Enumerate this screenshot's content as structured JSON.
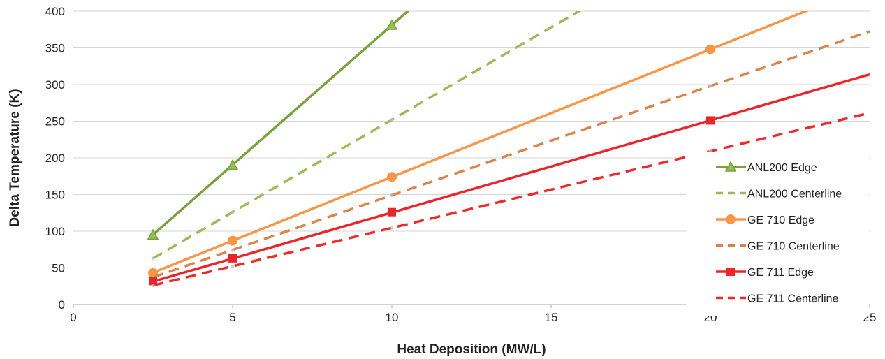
{
  "chart_data": {
    "type": "line",
    "title": "",
    "xlabel": "Heat Deposition (MW/L)",
    "ylabel": "Delta Temperature (K)",
    "xlim": [
      0,
      25
    ],
    "ylim": [
      0,
      400
    ],
    "x_ticks": [
      0,
      5,
      10,
      15,
      20,
      25
    ],
    "y_ticks": [
      0,
      50,
      100,
      150,
      200,
      250,
      300,
      350,
      400
    ],
    "grid": "horizontal",
    "legend_position": "right",
    "series": [
      {
        "name": "ANL200 Edge",
        "color": "#77a33c",
        "dash": "solid",
        "marker": "triangle",
        "x": [
          2.5,
          5,
          10
        ],
        "y": [
          95,
          190,
          381
        ],
        "trend_slope": 38.1
      },
      {
        "name": "ANL200 Centerline",
        "color": "#9bbb59",
        "dash": "dashed",
        "marker": "none",
        "x": [
          2.5,
          5,
          10
        ],
        "y": [
          63,
          126,
          252
        ],
        "trend_slope": 25.2
      },
      {
        "name": "GE 710 Edge",
        "color": "#f79646",
        "dash": "solid",
        "marker": "circle",
        "x": [
          2.5,
          5,
          10,
          20
        ],
        "y": [
          43,
          87,
          174,
          348
        ],
        "trend_slope": 17.4
      },
      {
        "name": "GE 710 Centerline",
        "color": "#d9844a",
        "dash": "dashed",
        "marker": "none",
        "x": [
          2.5,
          5,
          10,
          20
        ],
        "y": [
          37,
          74,
          149,
          298
        ],
        "trend_slope": 14.9
      },
      {
        "name": "GE 711 Edge",
        "color": "#e8262b",
        "dash": "solid",
        "marker": "square",
        "x": [
          2.5,
          5,
          10,
          20
        ],
        "y": [
          32,
          63,
          126,
          251
        ],
        "trend_slope": 12.55
      },
      {
        "name": "GE 711 Centerline",
        "color": "#ed2b2b",
        "dash": "dashed",
        "marker": "none",
        "x": [
          2.5,
          5,
          10,
          20
        ],
        "y": [
          26,
          52,
          104,
          209
        ],
        "trend_slope": 10.45
      }
    ]
  }
}
